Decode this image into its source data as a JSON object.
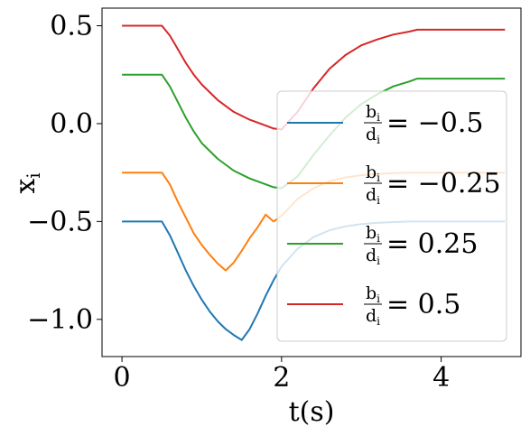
{
  "chart_data": {
    "type": "line",
    "xlabel": "t(s)",
    "ylabel": "x",
    "ylabel_subscript": "i",
    "xlim": [
      -0.25,
      5.0
    ],
    "ylim": [
      -1.19,
      0.59
    ],
    "xticks": [
      0,
      2,
      4
    ],
    "yticks": [
      0.5,
      0.0,
      -0.5,
      -1.0
    ],
    "xtick_labels": [
      "0",
      "2",
      "4"
    ],
    "ytick_labels": [
      "0.5",
      "0.0",
      "−0.5",
      "−1.0"
    ],
    "legend_position": "lower-right",
    "grid": false,
    "series": [
      {
        "name": "b_i/d_i = −0.5",
        "legend_rhs": "= −0.5",
        "color": "#1f77b4",
        "x": [
          0,
          0.5,
          0.6,
          0.7,
          0.8,
          0.9,
          1.0,
          1.1,
          1.2,
          1.3,
          1.4,
          1.5,
          1.6,
          1.7,
          1.8,
          1.9,
          2.0,
          2.2,
          2.4,
          2.6,
          2.8,
          3.0,
          3.2,
          3.4,
          3.6,
          3.7,
          4.0,
          4.4,
          4.8
        ],
        "y": [
          -0.5,
          -0.5,
          -0.57,
          -0.66,
          -0.75,
          -0.83,
          -0.9,
          -0.96,
          -1.01,
          -1.05,
          -1.08,
          -1.105,
          -1.05,
          -0.97,
          -0.88,
          -0.8,
          -0.73,
          -0.64,
          -0.58,
          -0.545,
          -0.525,
          -0.513,
          -0.507,
          -0.503,
          -0.5,
          -0.5,
          -0.5,
          -0.5,
          -0.5
        ]
      },
      {
        "name": "b_i/d_i = −0.25",
        "legend_rhs": "= −0.25",
        "color": "#ff7f0e",
        "x": [
          0,
          0.5,
          0.6,
          0.7,
          0.8,
          0.9,
          1.0,
          1.1,
          1.2,
          1.3,
          1.4,
          1.5,
          1.6,
          1.7,
          1.8,
          1.9,
          2.0,
          2.2,
          2.4,
          2.6,
          2.8,
          3.0,
          3.2,
          3.4,
          3.6,
          3.7,
          4.0,
          4.4,
          4.8
        ],
        "y": [
          -0.25,
          -0.25,
          -0.31,
          -0.4,
          -0.48,
          -0.56,
          -0.62,
          -0.67,
          -0.715,
          -0.75,
          -0.71,
          -0.65,
          -0.585,
          -0.53,
          -0.465,
          -0.5,
          -0.47,
          -0.385,
          -0.33,
          -0.295,
          -0.275,
          -0.263,
          -0.257,
          -0.253,
          -0.25,
          -0.25,
          -0.25,
          -0.25,
          -0.25
        ]
      },
      {
        "name": "b_i/d_i = 0.25",
        "legend_rhs": "= 0.25",
        "color": "#2ca02c",
        "x": [
          0,
          0.5,
          0.6,
          0.7,
          0.8,
          0.9,
          1.0,
          1.2,
          1.4,
          1.6,
          1.8,
          1.9,
          2.0,
          2.2,
          2.4,
          2.6,
          2.8,
          3.0,
          3.2,
          3.4,
          3.6,
          3.7,
          4.0,
          4.4,
          4.8
        ],
        "y": [
          0.25,
          0.25,
          0.19,
          0.11,
          0.03,
          -0.04,
          -0.1,
          -0.18,
          -0.24,
          -0.28,
          -0.31,
          -0.325,
          -0.33,
          -0.27,
          -0.16,
          -0.06,
          0.03,
          0.1,
          0.15,
          0.19,
          0.215,
          0.23,
          0.23,
          0.23,
          0.23
        ]
      },
      {
        "name": "b_i/d_i = 0.5",
        "legend_rhs": "= 0.5",
        "color": "#d62728",
        "x": [
          0,
          0.5,
          0.6,
          0.7,
          0.8,
          0.9,
          1.0,
          1.2,
          1.4,
          1.6,
          1.8,
          1.9,
          2.0,
          2.2,
          2.4,
          2.6,
          2.8,
          3.0,
          3.2,
          3.4,
          3.6,
          3.7,
          4.0,
          4.4,
          4.8
        ],
        "y": [
          0.5,
          0.5,
          0.45,
          0.38,
          0.31,
          0.25,
          0.2,
          0.12,
          0.06,
          0.02,
          -0.01,
          -0.025,
          -0.03,
          0.06,
          0.18,
          0.28,
          0.35,
          0.4,
          0.43,
          0.455,
          0.47,
          0.48,
          0.48,
          0.48,
          0.48
        ]
      }
    ]
  }
}
